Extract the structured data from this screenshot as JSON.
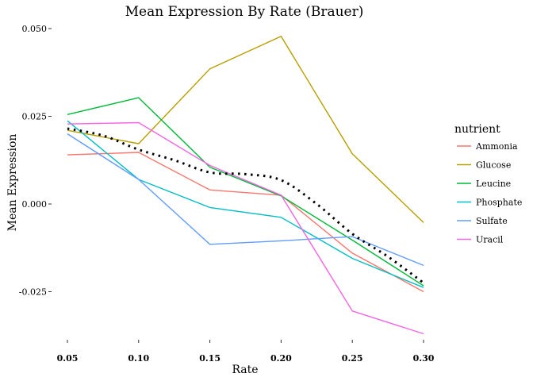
{
  "chart_data": {
    "type": "line",
    "title": "Mean Expression By Rate (Brauer)",
    "xlabel": "Rate",
    "ylabel": "Mean Expression",
    "x": [
      0.05,
      0.1,
      0.15,
      0.2,
      0.25,
      0.3
    ],
    "x_tick_labels": [
      "0.05",
      "0.10",
      "0.15",
      "0.20",
      "0.25",
      "0.30"
    ],
    "y_ticks": [
      -0.025,
      0.0,
      0.025,
      0.05
    ],
    "y_tick_labels": [
      "-0.025",
      "0.000",
      "0.025",
      "0.050"
    ],
    "xlim": [
      0.05,
      0.3
    ],
    "ylim": [
      -0.04,
      0.05
    ],
    "grid": false,
    "legend": {
      "title": "nutrient",
      "placement": "right"
    },
    "series": [
      {
        "name": "Ammonia",
        "color": "#F8766D",
        "values": [
          0.014,
          0.0147,
          0.004,
          0.0025,
          -0.014,
          -0.025
        ]
      },
      {
        "name": "Glucose",
        "color": "#B79F00",
        "values": [
          0.021,
          0.0172,
          0.0385,
          0.0478,
          0.0143,
          -0.0053
        ]
      },
      {
        "name": "Leucine",
        "color": "#00BA38",
        "values": [
          0.0255,
          0.0303,
          0.0105,
          0.0023,
          -0.0103,
          -0.0233
        ]
      },
      {
        "name": "Phosphate",
        "color": "#00BFC4",
        "values": [
          0.0237,
          0.007,
          -0.001,
          -0.0038,
          -0.0155,
          -0.0238
        ]
      },
      {
        "name": "Sulfate",
        "color": "#619CFF",
        "values": [
          0.02,
          0.007,
          -0.0115,
          -0.0105,
          -0.0093,
          -0.0175
        ]
      },
      {
        "name": "Uracil",
        "color": "#F564E3",
        "values": [
          0.0228,
          0.0232,
          0.011,
          0.0025,
          -0.0305,
          -0.037
        ]
      }
    ],
    "smooth": {
      "style": "dotted",
      "color": "#000000",
      "x": [
        0.05,
        0.075,
        0.1,
        0.125,
        0.15,
        0.175,
        0.2,
        0.225,
        0.25,
        0.275,
        0.3
      ],
      "values": [
        0.0215,
        0.0195,
        0.0155,
        0.0125,
        0.009,
        0.0085,
        0.0068,
        0.0,
        -0.0085,
        -0.015,
        -0.0225
      ]
    }
  }
}
